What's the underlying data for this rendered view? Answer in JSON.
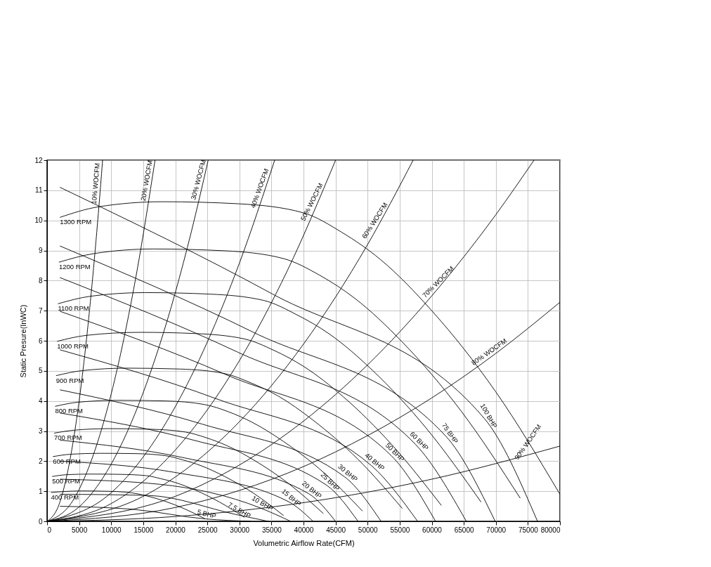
{
  "chart_data": {
    "type": "line",
    "xlabel": "Volumetric Airflow Rate(CFM)",
    "ylabel": "Static Presure(InWC)",
    "xlim": [
      0,
      80000
    ],
    "ylim": [
      0,
      12
    ],
    "xticks": [
      0,
      5000,
      10000,
      15000,
      20000,
      25000,
      30000,
      35000,
      40000,
      45000,
      50000,
      55000,
      60000,
      65000,
      70000,
      75000,
      80000
    ],
    "yticks": [
      0,
      1,
      2,
      3,
      4,
      5,
      6,
      7,
      8,
      9,
      10,
      11,
      12
    ],
    "grid": true,
    "line_style": "solid",
    "series": [
      {
        "name": "1300 RPM",
        "color": "#000000",
        "x": [
          2000,
          8000,
          18000,
          30000,
          40000,
          46000,
          52000,
          60000,
          70000,
          80000
        ],
        "values": [
          10.1,
          10.45,
          10.62,
          10.55,
          10.25,
          9.6,
          8.7,
          7.0,
          4.3,
          0.9
        ]
      },
      {
        "name": "1200 RPM",
        "color": "#000000",
        "x": [
          1850,
          7400,
          16600,
          27700,
          36900,
          42500,
          48000,
          55400,
          64600,
          73800
        ],
        "values": [
          8.61,
          8.9,
          9.05,
          8.99,
          8.73,
          8.18,
          7.41,
          5.96,
          3.66,
          0.77
        ]
      },
      {
        "name": "1100 RPM",
        "color": "#000000",
        "x": [
          1700,
          6800,
          15200,
          25400,
          33800,
          38900,
          44000,
          50800,
          59200,
          67700
        ],
        "values": [
          7.23,
          7.48,
          7.6,
          7.55,
          7.34,
          6.87,
          6.23,
          5.01,
          3.08,
          0.64
        ]
      },
      {
        "name": "1000 RPM",
        "color": "#000000",
        "x": [
          1550,
          6150,
          14600,
          23100,
          30800,
          35400,
          40000,
          46200,
          53800,
          61500
        ],
        "values": [
          5.98,
          6.18,
          6.28,
          6.24,
          6.06,
          5.68,
          5.15,
          4.14,
          2.54,
          0.53
        ]
      },
      {
        "name": "900 RPM",
        "color": "#000000",
        "x": [
          1400,
          5550,
          12500,
          20800,
          27700,
          31800,
          36000,
          41500,
          48500,
          55400
        ],
        "values": [
          4.84,
          5.01,
          5.09,
          5.06,
          4.91,
          4.6,
          4.17,
          3.36,
          2.06,
          0.43
        ]
      },
      {
        "name": "800 RPM",
        "color": "#000000",
        "x": [
          1250,
          4900,
          11100,
          18500,
          24600,
          28300,
          32000,
          36900,
          43100,
          49200
        ],
        "values": [
          3.82,
          3.96,
          4.02,
          4.0,
          3.88,
          3.64,
          3.29,
          2.65,
          1.63,
          0.34
        ]
      },
      {
        "name": "700 RPM",
        "color": "#000000",
        "x": [
          1100,
          4300,
          9700,
          16200,
          21500,
          24800,
          28000,
          32300,
          37700,
          43100
        ],
        "values": [
          2.93,
          3.03,
          3.08,
          3.06,
          2.97,
          2.78,
          2.52,
          2.03,
          1.25,
          0.26
        ]
      },
      {
        "name": "600 RPM",
        "color": "#000000",
        "x": [
          900,
          3700,
          8300,
          13800,
          18500,
          21200,
          24000,
          27700,
          32300,
          36900
        ],
        "values": [
          2.15,
          2.23,
          2.26,
          2.25,
          2.18,
          2.04,
          1.85,
          1.49,
          0.92,
          0.19
        ]
      },
      {
        "name": "500 RPM",
        "color": "#000000",
        "x": [
          800,
          3100,
          6900,
          11500,
          15400,
          17700,
          20000,
          23100,
          26900,
          30800
        ],
        "values": [
          1.49,
          1.55,
          1.57,
          1.56,
          1.52,
          1.42,
          1.29,
          1.04,
          0.64,
          0.13
        ]
      },
      {
        "name": "400 RPM",
        "color": "#000000",
        "x": [
          600,
          2500,
          5500,
          9200,
          12300,
          14200,
          16000,
          18500,
          21500,
          24600
        ],
        "values": [
          0.96,
          0.99,
          1.01,
          1.0,
          0.97,
          0.91,
          0.82,
          0.66,
          0.41,
          0.09
        ]
      },
      {
        "name": "10% WOCFM",
        "color": "#000000",
        "x": [
          0,
          2000,
          4000,
          5000,
          6000,
          7000,
          8000,
          8660
        ],
        "values": [
          0,
          0.64,
          2.56,
          4.0,
          5.76,
          7.84,
          10.24,
          12.0
        ]
      },
      {
        "name": "20% WOCFM",
        "color": "#000000",
        "x": [
          0,
          4000,
          8000,
          10000,
          12000,
          14000,
          16840
        ],
        "values": [
          0,
          0.68,
          2.71,
          4.23,
          6.09,
          8.29,
          12.0
        ]
      },
      {
        "name": "30% WOCFM",
        "color": "#000000",
        "x": [
          0,
          5000,
          10000,
          15000,
          20000,
          22500,
          25130
        ],
        "values": [
          0,
          0.48,
          1.9,
          4.28,
          7.6,
          9.62,
          12.0
        ]
      },
      {
        "name": "40% WOCFM",
        "color": "#000000",
        "x": [
          0,
          10000,
          20000,
          25000,
          30000,
          35500
        ],
        "values": [
          0,
          0.95,
          3.81,
          5.96,
          8.58,
          12.0
        ]
      },
      {
        "name": "50% WOCFM",
        "color": "#000000",
        "x": [
          0,
          10000,
          20000,
          30000,
          37500,
          45000
        ],
        "values": [
          0,
          0.59,
          2.37,
          5.34,
          8.34,
          12.0
        ]
      },
      {
        "name": "60% WOCFM",
        "color": "#000000",
        "x": [
          0,
          15000,
          30000,
          40000,
          50000,
          57100
        ],
        "values": [
          0,
          0.83,
          3.31,
          5.89,
          9.2,
          12.0
        ]
      },
      {
        "name": "70% WOCFM",
        "color": "#000000",
        "x": [
          0,
          20000,
          40000,
          50000,
          60000,
          70000,
          75950
        ],
        "values": [
          0,
          0.83,
          3.33,
          5.2,
          7.49,
          10.19,
          12.0
        ]
      },
      {
        "name": "80% WOCFM",
        "color": "#000000",
        "x": [
          0,
          20000,
          40000,
          50000,
          60000,
          70000,
          80000
        ],
        "values": [
          0,
          0.46,
          1.82,
          2.85,
          4.1,
          5.58,
          7.28
        ]
      },
      {
        "name": "90% WOCFM",
        "color": "#000000",
        "x": [
          0,
          20000,
          40000,
          60000,
          80000
        ],
        "values": [
          0,
          0.16,
          0.62,
          1.4,
          2.5
        ]
      },
      {
        "name": "5 BHP",
        "color": "#000000",
        "x": [
          2000,
          13350,
          24700,
          31800
        ],
        "values": [
          0.5,
          0.4,
          0.08,
          0
        ]
      },
      {
        "name": "7.5 BHP",
        "color": "#000000",
        "x": [
          2000,
          15800,
          29600,
          34500
        ],
        "values": [
          0.9,
          0.86,
          0.22,
          0
        ]
      },
      {
        "name": "10 BHP",
        "color": "#000000",
        "x": [
          2000,
          17600,
          33200,
          38000
        ],
        "values": [
          1.4,
          1.23,
          0.45,
          0
        ]
      },
      {
        "name": "15 BHP",
        "color": "#000000",
        "x": [
          2000,
          19800,
          37600,
          41500
        ],
        "values": [
          2.0,
          1.63,
          0.66,
          0
        ]
      },
      {
        "name": "20 BHP",
        "color": "#000000",
        "x": [
          2000,
          21400,
          40800,
          45000
        ],
        "values": [
          2.7,
          2.11,
          0.92,
          0
        ]
      },
      {
        "name": "25 BHP",
        "color": "#000000",
        "x": [
          2000,
          22800,
          43600,
          48500
        ],
        "values": [
          3.6,
          2.7,
          1.2,
          0
        ]
      },
      {
        "name": "30 BHP",
        "color": "#000000",
        "x": [
          2000,
          24200,
          46400,
          52100
        ],
        "values": [
          4.37,
          3.23,
          1.48,
          0
        ]
      },
      {
        "name": "40 BHP",
        "color": "#000000",
        "x": [
          2000,
          26300,
          50600,
          57800
        ],
        "values": [
          5.7,
          4.08,
          1.85,
          0
        ]
      },
      {
        "name": "50 BHP",
        "color": "#000000",
        "x": [
          2000,
          27850,
          53700,
          60600
        ],
        "values": [
          6.98,
          4.88,
          2.18,
          0
        ]
      },
      {
        "name": "60 BHP",
        "color": "#000000",
        "x": [
          2000,
          29750,
          57500,
          65400
        ],
        "values": [
          8.1,
          5.62,
          2.55,
          0
        ]
      },
      {
        "name": "75 BHP",
        "color": "#000000",
        "x": [
          2000,
          32100,
          62200,
          69900
        ],
        "values": [
          9.15,
          6.29,
          2.83,
          0
        ]
      },
      {
        "name": "100 BHP",
        "color": "#000000",
        "x": [
          2000,
          35100,
          68200,
          76500
        ],
        "values": [
          11.1,
          7.56,
          3.42,
          0
        ]
      }
    ]
  }
}
